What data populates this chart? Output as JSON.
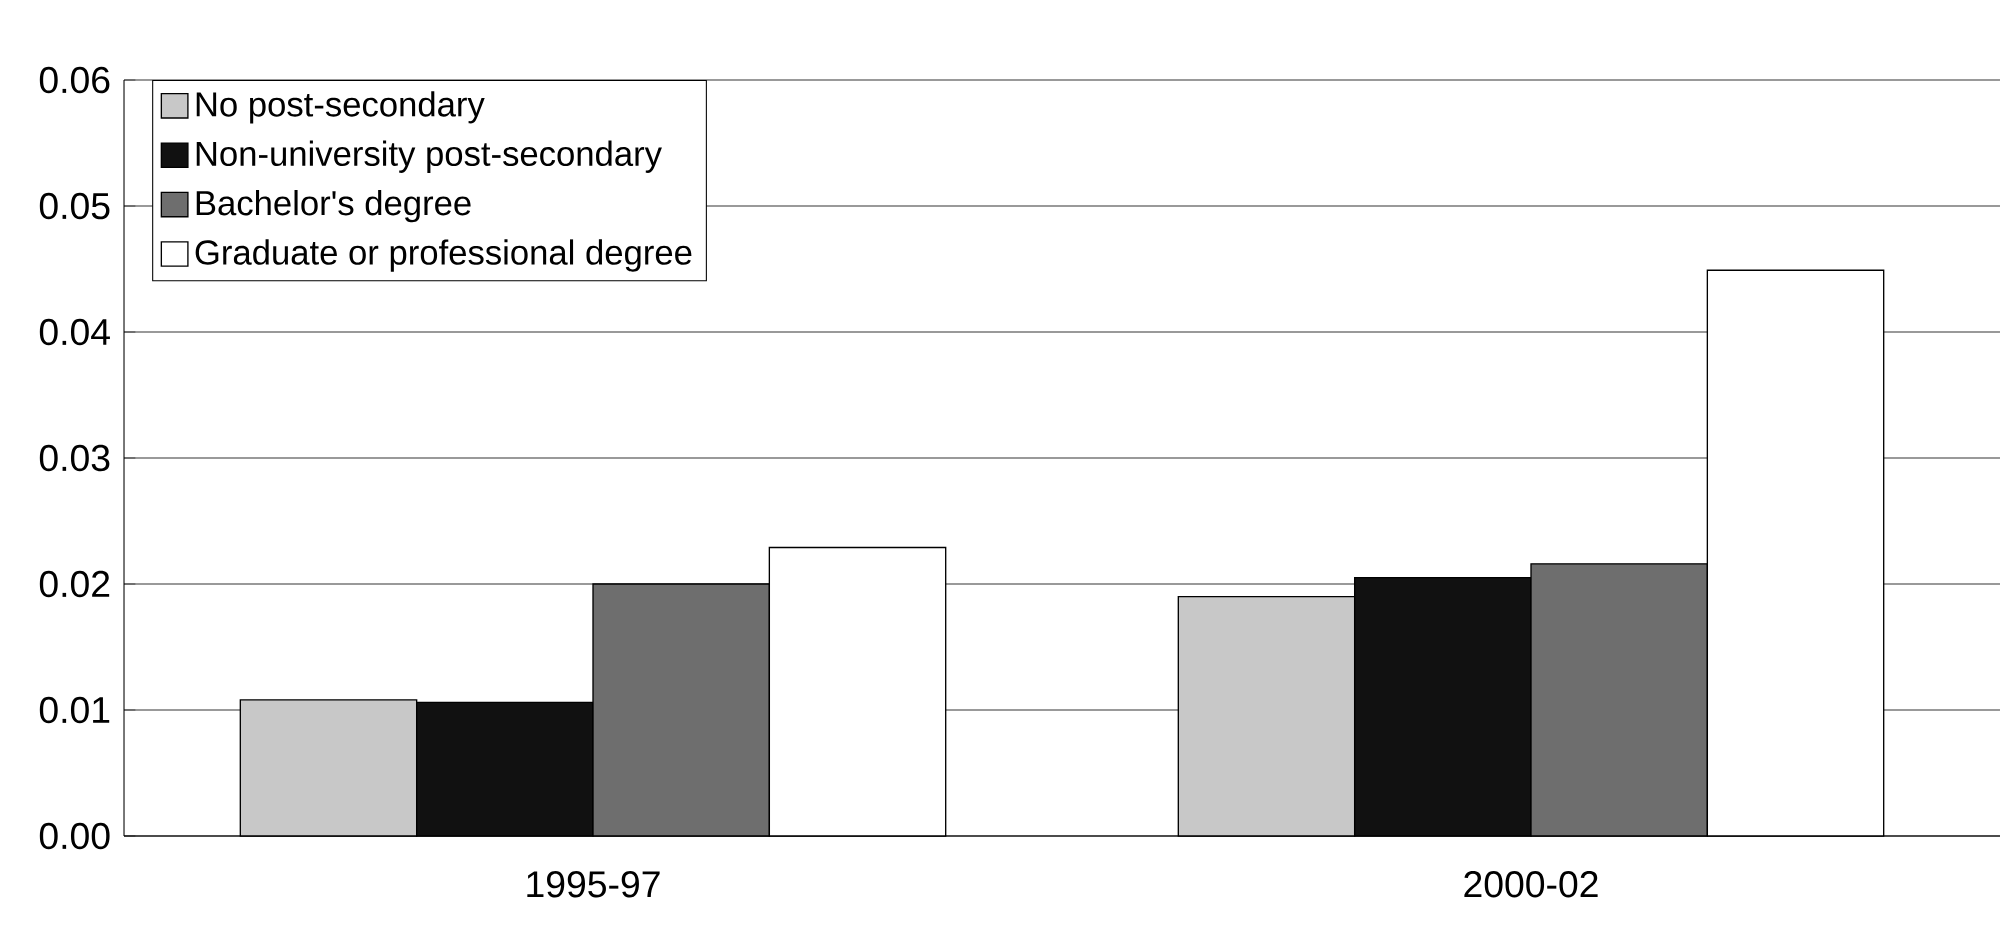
{
  "chart_data": {
    "type": "bar",
    "categories": [
      "1995-97",
      "2000-02"
    ],
    "series": [
      {
        "name": "No post-secondary",
        "color": "#c8c8c8",
        "values": [
          0.0108,
          0.019
        ]
      },
      {
        "name": "Non-university post-secondary",
        "color": "#111111",
        "values": [
          0.0106,
          0.0205
        ]
      },
      {
        "name": "Bachelor's degree",
        "color": "#6e6e6e",
        "values": [
          0.02,
          0.0216
        ]
      },
      {
        "name": "Graduate or professional degree",
        "color": "#ffffff",
        "values": [
          0.0229,
          0.0449
        ]
      }
    ],
    "ylim": [
      0,
      0.06
    ],
    "yticks": [
      {
        "value": 0,
        "label": "0.00"
      },
      0.01,
      0.02,
      0.03,
      0.04,
      0.05,
      0.06
    ],
    "grid": "y",
    "legend": "top left"
  }
}
